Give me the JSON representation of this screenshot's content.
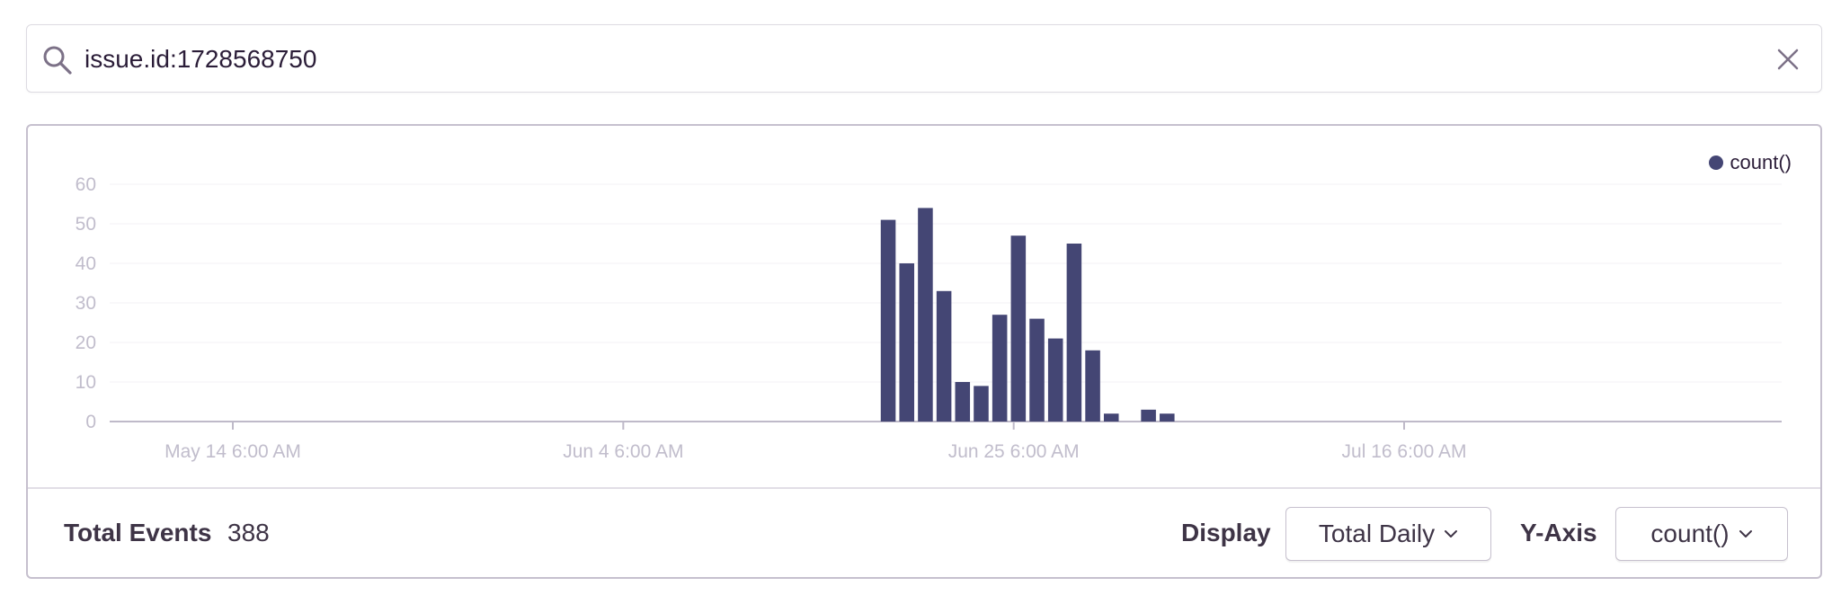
{
  "search": {
    "query": "issue.id:1728568750"
  },
  "chart_data": {
    "type": "bar",
    "series": [
      {
        "name": "count()",
        "color": "#444674",
        "points": [
          {
            "x": "2018-06-18",
            "y": 51
          },
          {
            "x": "2018-06-19",
            "y": 40
          },
          {
            "x": "2018-06-20",
            "y": 54
          },
          {
            "x": "2018-06-21",
            "y": 33
          },
          {
            "x": "2018-06-22",
            "y": 10
          },
          {
            "x": "2018-06-23",
            "y": 9
          },
          {
            "x": "2018-06-24",
            "y": 27
          },
          {
            "x": "2018-06-25",
            "y": 47
          },
          {
            "x": "2018-06-26",
            "y": 26
          },
          {
            "x": "2018-06-27",
            "y": 21
          },
          {
            "x": "2018-06-28",
            "y": 45
          },
          {
            "x": "2018-06-29",
            "y": 18
          },
          {
            "x": "2018-06-30",
            "y": 2
          },
          {
            "x": "2018-07-02",
            "y": 3
          },
          {
            "x": "2018-07-03",
            "y": 2
          }
        ]
      }
    ],
    "x_ticks": [
      "May 14 6:00 AM",
      "Jun 4 6:00 AM",
      "Jun 25 6:00 AM",
      "Jul 16 6:00 AM"
    ],
    "y_ticks": [
      0,
      10,
      20,
      30,
      40,
      50,
      60
    ],
    "ylim": [
      0,
      60
    ],
    "legend": [
      "count()"
    ],
    "legend_position": "top-right",
    "grid": true
  },
  "footer": {
    "total_label": "Total Events",
    "total_value": "388",
    "display_label": "Display",
    "display_value": "Total Daily",
    "yaxis_label": "Y-Axis",
    "yaxis_value": "count()"
  },
  "colors": {
    "bar": "#444674",
    "axis_text": "#c1bdcc",
    "axis_line": "#bfbac9",
    "grid": "#f3f1f5"
  }
}
